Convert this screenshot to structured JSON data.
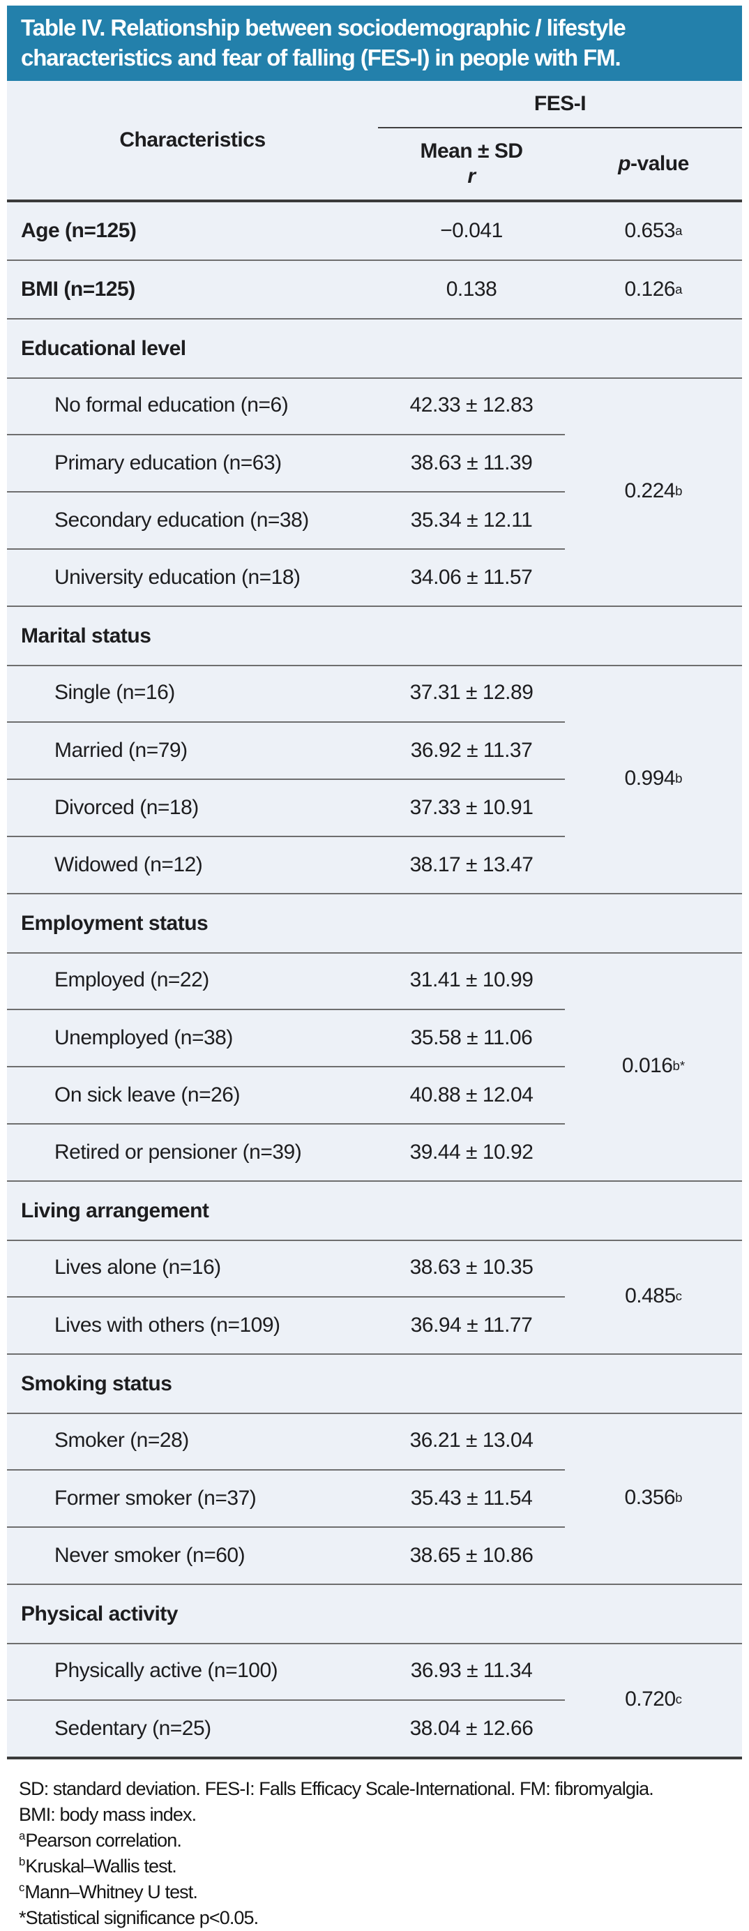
{
  "colors": {
    "title_bg": "#2380ab",
    "table_bg": "#edf1f7",
    "rule_thin": "#6e6e6e",
    "rule_thick": "#3b3b3b"
  },
  "title": {
    "line1": "Table IV. Relationship between sociodemographic / lifestyle",
    "line2": "characteristics and fear of falling (FES-I) in people with FM."
  },
  "header": {
    "characteristics": "Characteristics",
    "group": "FES-I",
    "col_mean": "Mean ± SD",
    "col_mean_sub": "r",
    "col_p_italic": "p",
    "col_p_rest": "-value"
  },
  "rows": {
    "age": {
      "label": "Age (n=125)",
      "value": "−0.041",
      "p": "0.653",
      "p_sup": "a"
    },
    "bmi": {
      "label": "BMI (n=125)",
      "value": "0.138",
      "p": "0.126",
      "p_sup": "a"
    }
  },
  "sections": [
    {
      "header": "Educational level",
      "p": "0.224",
      "p_sup": "b",
      "items": [
        {
          "label": "No formal education (n=6)",
          "value": "42.33 ± 12.83"
        },
        {
          "label": "Primary education (n=63)",
          "value": "38.63 ± 11.39"
        },
        {
          "label": "Secondary education (n=38)",
          "value": "35.34 ± 12.11"
        },
        {
          "label": "University education (n=18)",
          "value": "34.06 ± 11.57"
        }
      ]
    },
    {
      "header": "Marital status",
      "p": "0.994",
      "p_sup": "b",
      "items": [
        {
          "label": "Single (n=16)",
          "value": "37.31 ± 12.89"
        },
        {
          "label": "Married (n=79)",
          "value": "36.92 ± 11.37"
        },
        {
          "label": "Divorced (n=18)",
          "value": "37.33 ± 10.91"
        },
        {
          "label": "Widowed (n=12)",
          "value": "38.17 ± 13.47"
        }
      ]
    },
    {
      "header": "Employment status",
      "p": "0.016",
      "p_sup": "b*",
      "items": [
        {
          "label": "Employed (n=22)",
          "value": "31.41 ± 10.99"
        },
        {
          "label": "Unemployed (n=38)",
          "value": "35.58 ± 11.06"
        },
        {
          "label": "On sick leave (n=26)",
          "value": "40.88 ± 12.04"
        },
        {
          "label": "Retired or pensioner (n=39)",
          "value": "39.44 ± 10.92"
        }
      ]
    },
    {
      "header": "Living arrangement",
      "p": "0.485",
      "p_sup": "c",
      "items": [
        {
          "label": "Lives alone (n=16)",
          "value": "38.63 ± 10.35"
        },
        {
          "label": "Lives with others (n=109)",
          "value": "36.94 ± 11.77"
        }
      ]
    },
    {
      "header": "Smoking status",
      "p": "0.356",
      "p_sup": "b",
      "items": [
        {
          "label": "Smoker (n=28)",
          "value": "36.21 ± 13.04"
        },
        {
          "label": "Former smoker (n=37)",
          "value": "35.43 ± 11.54"
        },
        {
          "label": "Never smoker (n=60)",
          "value": "38.65 ± 10.86"
        }
      ]
    },
    {
      "header": "Physical activity",
      "p": "0.720",
      "p_sup": "c",
      "items": [
        {
          "label": "Physically active (n=100)",
          "value": "36.93 ± 11.34"
        },
        {
          "label": "Sedentary (n=25)",
          "value": "38.04 ± 12.66"
        }
      ]
    }
  ],
  "footnotes": [
    {
      "sup": "",
      "text": "SD: standard deviation. FES-I: Falls Efficacy Scale-International. FM: fibromyalgia."
    },
    {
      "sup": "",
      "text": "BMI: body mass index."
    },
    {
      "sup": "a",
      "text": "Pearson correlation."
    },
    {
      "sup": "b",
      "text": "Kruskal–Wallis test."
    },
    {
      "sup": "c",
      "text": "Mann–Whitney U test."
    },
    {
      "sup": "",
      "text": "*Statistical significance p<0.05."
    }
  ]
}
